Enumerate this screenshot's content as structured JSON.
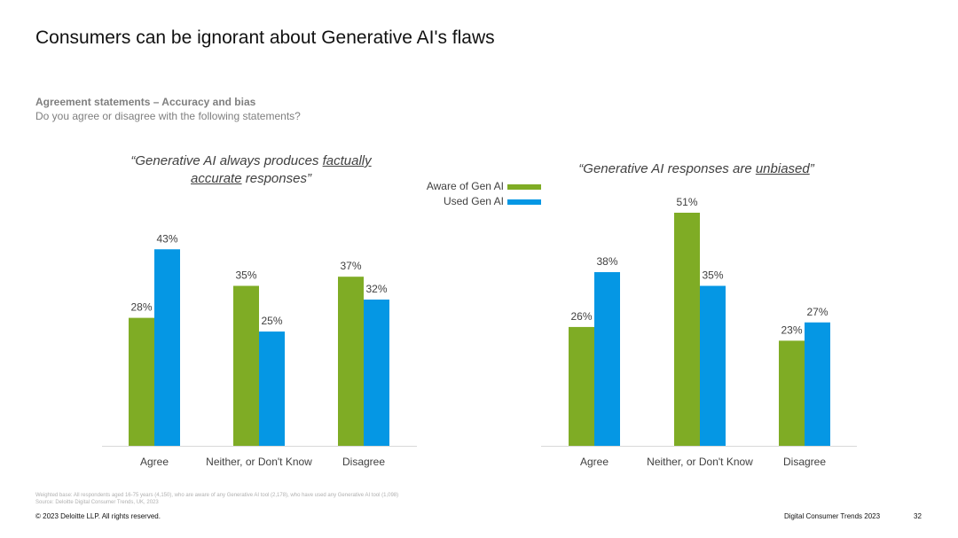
{
  "title": "Consumers can be ignorant about Generative AI's flaws",
  "subtitle_bold": "Agreement statements – Accuracy and bias",
  "subtitle": "Do you agree or disagree with the following statements?",
  "legend": {
    "aware": "Aware of Gen AI",
    "used": "Used Gen AI"
  },
  "colors": {
    "aware": "#7fac25",
    "used": "#0597e4",
    "axis": "#d9d9d9",
    "text": "#404040"
  },
  "quote1": {
    "before": "“Generative AI always produces ",
    "underline": "factually accurate",
    "after": " responses”"
  },
  "quote2": {
    "before": "“Generative AI responses are ",
    "underline": "unbiased",
    "after": "”"
  },
  "chart_data": [
    {
      "type": "bar",
      "title": "“Generative AI always produces factually accurate responses”",
      "categories": [
        "Agree",
        "Neither, or Don't Know",
        "Disagree"
      ],
      "series": [
        {
          "name": "Aware of Gen AI",
          "values": [
            28,
            35,
            37
          ],
          "labels": [
            "28%",
            "35%",
            "37%"
          ]
        },
        {
          "name": "Used Gen AI",
          "values": [
            43,
            25,
            32
          ],
          "labels": [
            "43%",
            "25%",
            "32%"
          ]
        }
      ],
      "ylim": [
        0,
        51
      ]
    },
    {
      "type": "bar",
      "title": "“Generative AI responses are unbiased”",
      "categories": [
        "Agree",
        "Neither, or Don't Know",
        "Disagree"
      ],
      "series": [
        {
          "name": "Aware of Gen AI",
          "values": [
            26,
            51,
            23
          ],
          "labels": [
            "26%",
            "51%",
            "23%"
          ]
        },
        {
          "name": "Used Gen AI",
          "values": [
            38,
            35,
            27
          ],
          "labels": [
            "38%",
            "35%",
            "27%"
          ]
        }
      ],
      "ylim": [
        0,
        51
      ]
    }
  ],
  "footnote1": "Weighted base: All respondents aged 16-75 years (4,150), who are aware of any Generative AI tool (2,178), who have used any Generative AI tool (1,098)",
  "footnote2": "Source: Deloitte Digital Consumer Trends, UK, 2023",
  "copyright": "© 2023 Deloitte LLP. All rights reserved.",
  "report_name": "Digital Consumer Trends 2023",
  "page_number": "32"
}
